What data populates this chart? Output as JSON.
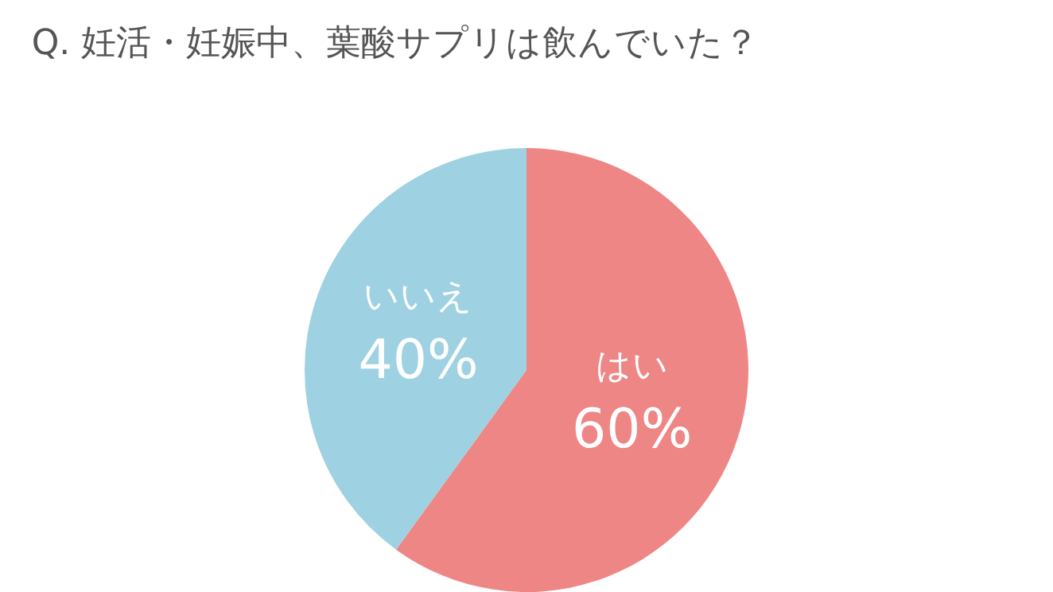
{
  "chart_data": {
    "type": "pie",
    "title": "Q. 妊活・妊娠中、葉酸サプリは飲んでいた？",
    "categories": [
      "はい",
      "いいえ"
    ],
    "values": [
      60,
      40
    ],
    "value_labels": [
      "60%",
      "40%"
    ],
    "colors": [
      "#ee8686",
      "#9ed1e1"
    ],
    "legend": false
  }
}
